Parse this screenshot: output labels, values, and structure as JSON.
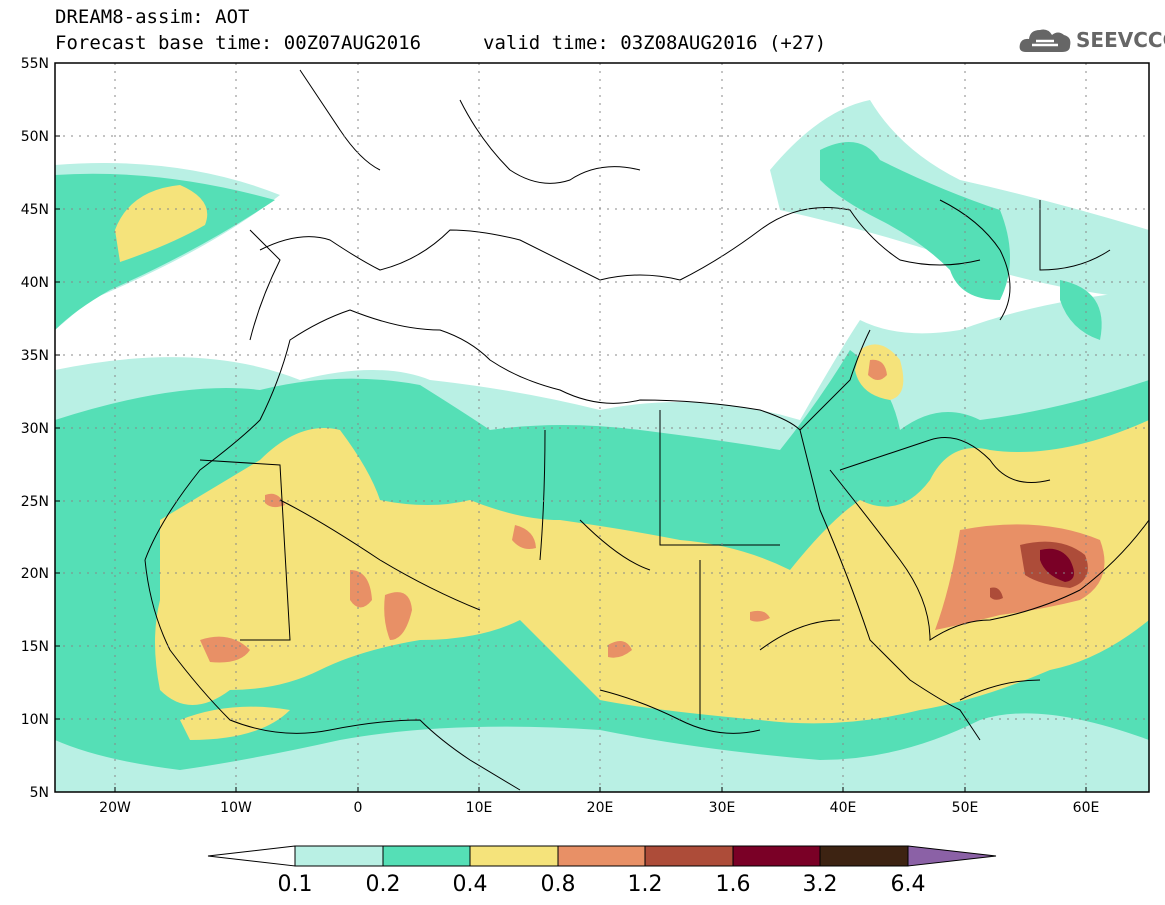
{
  "header": {
    "title": "DREAM8-assim: AOT",
    "base_time": "Forecast base time: 00Z07AUG2016",
    "valid_time": "valid time: 03Z08AUG2016 (+27)"
  },
  "logo": {
    "text": "SEEVCCC",
    "icon": "cloud-icon"
  },
  "axes": {
    "lat_labels": [
      "55N",
      "50N",
      "45N",
      "40N",
      "35N",
      "30N",
      "25N",
      "20N",
      "15N",
      "10N",
      "5N"
    ],
    "lon_labels": [
      "20W",
      "10W",
      "0",
      "10E",
      "20E",
      "30E",
      "40E",
      "50E",
      "60E"
    ]
  },
  "colorbar": {
    "labels": [
      "0.1",
      "0.2",
      "0.4",
      "0.8",
      "1.2",
      "1.6",
      "3.2",
      "6.4"
    ],
    "colors": [
      "#ffffff",
      "#b9f0e4",
      "#55dfb6",
      "#f5e37b",
      "#e89066",
      "#ad4c39",
      "#7a0026",
      "#3d2312",
      "#8b61a6"
    ]
  }
}
